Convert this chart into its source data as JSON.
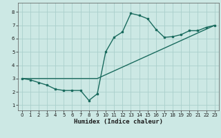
{
  "xlabel": "Humidex (Indice chaleur)",
  "background_color": "#cce8e4",
  "grid_color": "#aacfcc",
  "line_color": "#1a6b5e",
  "xlim": [
    -0.5,
    23.5
  ],
  "ylim": [
    0.6,
    8.7
  ],
  "xticks": [
    0,
    1,
    2,
    3,
    4,
    5,
    6,
    7,
    8,
    9,
    10,
    11,
    12,
    13,
    14,
    15,
    16,
    17,
    18,
    19,
    20,
    21,
    22,
    23
  ],
  "yticks": [
    1,
    2,
    3,
    4,
    5,
    6,
    7,
    8
  ],
  "line1_x": [
    0,
    1,
    2,
    3,
    4,
    5,
    6,
    7,
    8,
    9,
    10,
    11,
    12,
    13,
    14,
    15,
    16,
    17,
    18,
    19,
    20,
    21,
    22,
    23
  ],
  "line1_y": [
    3.0,
    2.9,
    2.7,
    2.5,
    2.2,
    2.1,
    2.1,
    2.1,
    1.35,
    1.85,
    5.0,
    6.1,
    6.5,
    7.9,
    7.75,
    7.5,
    6.7,
    6.1,
    6.15,
    6.3,
    6.6,
    6.6,
    6.85,
    7.0
  ],
  "line2_x": [
    0,
    9,
    23
  ],
  "line2_y": [
    3.0,
    3.0,
    7.0
  ],
  "tick_fontsize": 5.0,
  "xlabel_fontsize": 6.5
}
